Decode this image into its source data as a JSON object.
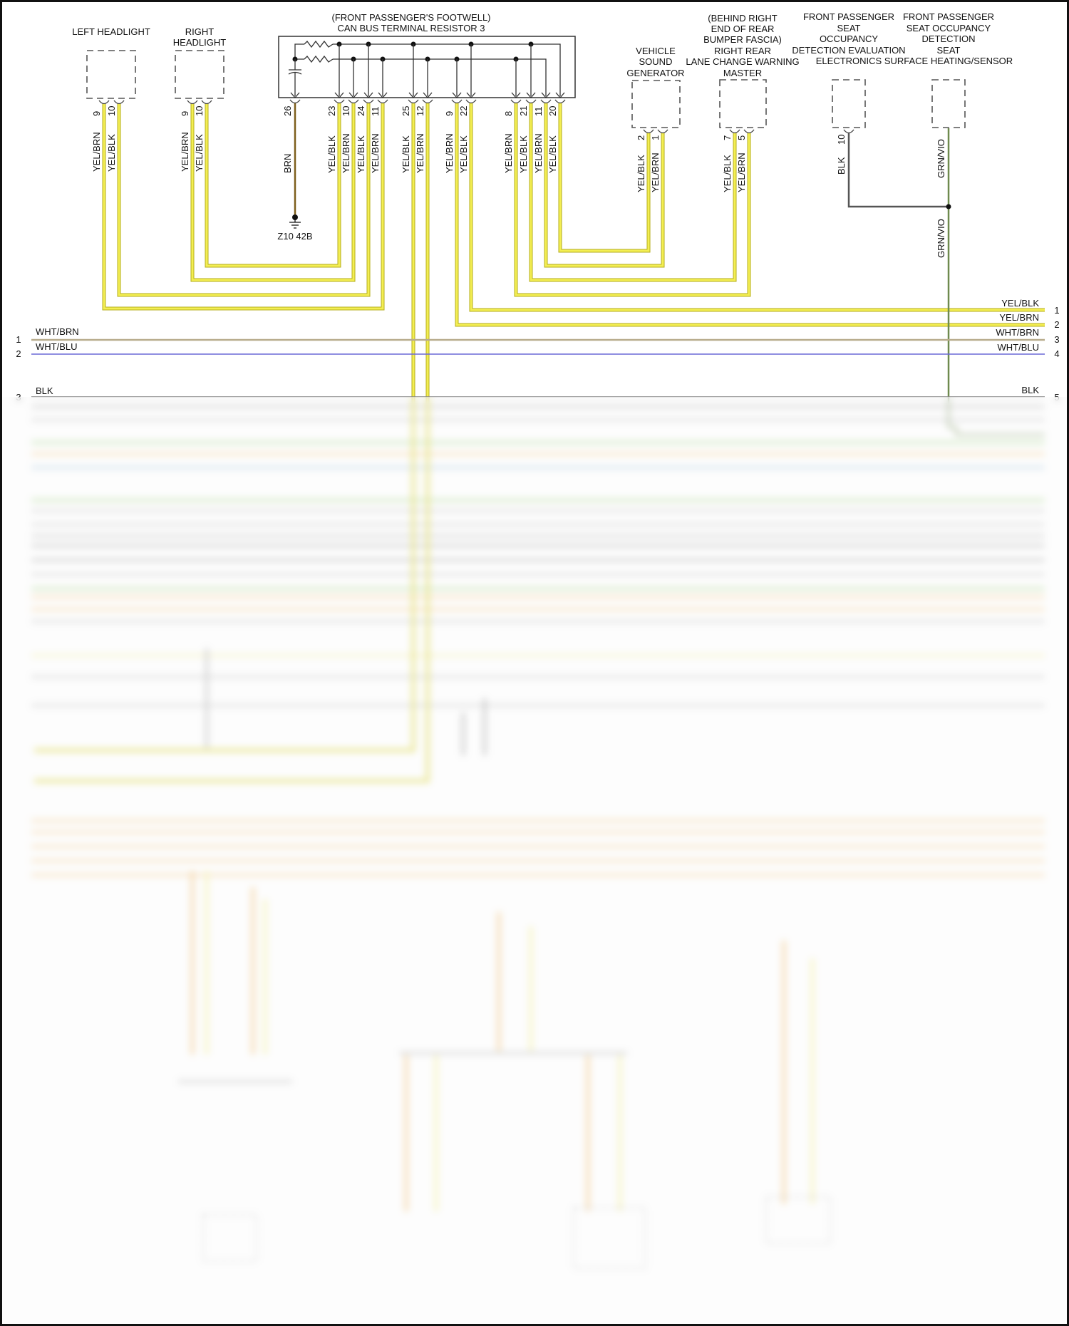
{
  "components": {
    "left_headlight": {
      "label": [
        "LEFT HEADLIGHT"
      ],
      "pins": [
        {
          "num": "9",
          "wire": "YEL/BRN"
        },
        {
          "num": "10",
          "wire": "YEL/BLK"
        }
      ]
    },
    "right_headlight": {
      "label": [
        "RIGHT",
        "HEADLIGHT"
      ],
      "pins": [
        {
          "num": "9",
          "wire": "YEL/BRN"
        },
        {
          "num": "10",
          "wire": "YEL/BLK"
        }
      ]
    },
    "can_resistor": {
      "label": [
        "(FRONT PASSENGER'S FOOTWELL)",
        "CAN BUS TERMINAL RESISTOR 3"
      ],
      "pins": [
        {
          "num": "26",
          "wire": "BRN"
        },
        {
          "num": "23",
          "wire": "YEL/BLK"
        },
        {
          "num": "10",
          "wire": "YEL/BRN"
        },
        {
          "num": "24",
          "wire": "YEL/BLK"
        },
        {
          "num": "11",
          "wire": "YEL/BRN"
        },
        {
          "num": "25",
          "wire": "YEL/BLK"
        },
        {
          "num": "12",
          "wire": "YEL/BRN"
        },
        {
          "num": "9",
          "wire": "YEL/BRN"
        },
        {
          "num": "22",
          "wire": "YEL/BLK"
        },
        {
          "num": "8",
          "wire": "YEL/BRN"
        },
        {
          "num": "21",
          "wire": "YEL/BLK"
        },
        {
          "num": "11",
          "wire": "YEL/BRN"
        },
        {
          "num": "20",
          "wire": "YEL/BLK"
        }
      ]
    },
    "vehicle_sound_generator": {
      "label": [
        "VEHICLE",
        "SOUND",
        "GENERATOR"
      ],
      "pins": [
        {
          "num": "2",
          "wire": "YEL/BLK"
        },
        {
          "num": "1",
          "wire": "YEL/BRN"
        }
      ]
    },
    "lane_change_warning_master": {
      "label": [
        "(BEHIND RIGHT",
        "END OF REAR",
        "BUMPER FASCIA)",
        "RIGHT REAR",
        "LANE CHANGE WARNING",
        "MASTER"
      ],
      "pins": [
        {
          "num": "7",
          "wire": "YEL/BLK"
        },
        {
          "num": "5",
          "wire": "YEL/BRN"
        }
      ]
    },
    "occupancy_evaluation": {
      "label": [
        "FRONT PASSENGER",
        "SEAT",
        "OCCUPANCY",
        "DETECTION EVALUATION",
        "ELECTRONICS"
      ],
      "pins": [
        {
          "num": "10",
          "wire": "BLK"
        }
      ]
    },
    "seat_sensor": {
      "label": [
        "FRONT PASSENGER",
        "SEAT OCCUPANCY",
        "DETECTION",
        "SEAT",
        "SURFACE HEATING/SENSOR"
      ],
      "pins": [
        {
          "num": "",
          "wire": "GRN/VIO"
        }
      ]
    }
  },
  "ground": {
    "label": "Z10 42B"
  },
  "splice_wire": "GRN/VIO",
  "left_connector": [
    {
      "num": "1",
      "wire": "WHT/BRN"
    },
    {
      "num": "2",
      "wire": "WHT/BLU"
    },
    {
      "num": "3",
      "wire": "BLK"
    }
  ],
  "right_connector": [
    {
      "num": "1",
      "wire": "YEL/BLK"
    },
    {
      "num": "2",
      "wire": "YEL/BRN"
    },
    {
      "num": "3",
      "wire": "WHT/BRN"
    },
    {
      "num": "4",
      "wire": "WHT/BLU"
    },
    {
      "num": "5",
      "wire": "BLK"
    }
  ],
  "wire_colors": {
    "YEL/BLK": "#e6df2e",
    "YEL/BRN": "#e6df2e",
    "BRN": "#7d5f1c",
    "WHT/BRN": "#b8ac8c",
    "WHT/BLU": "#6a68d6",
    "BLK": "#555555",
    "GRN/VIO": "#6e8a4e"
  }
}
